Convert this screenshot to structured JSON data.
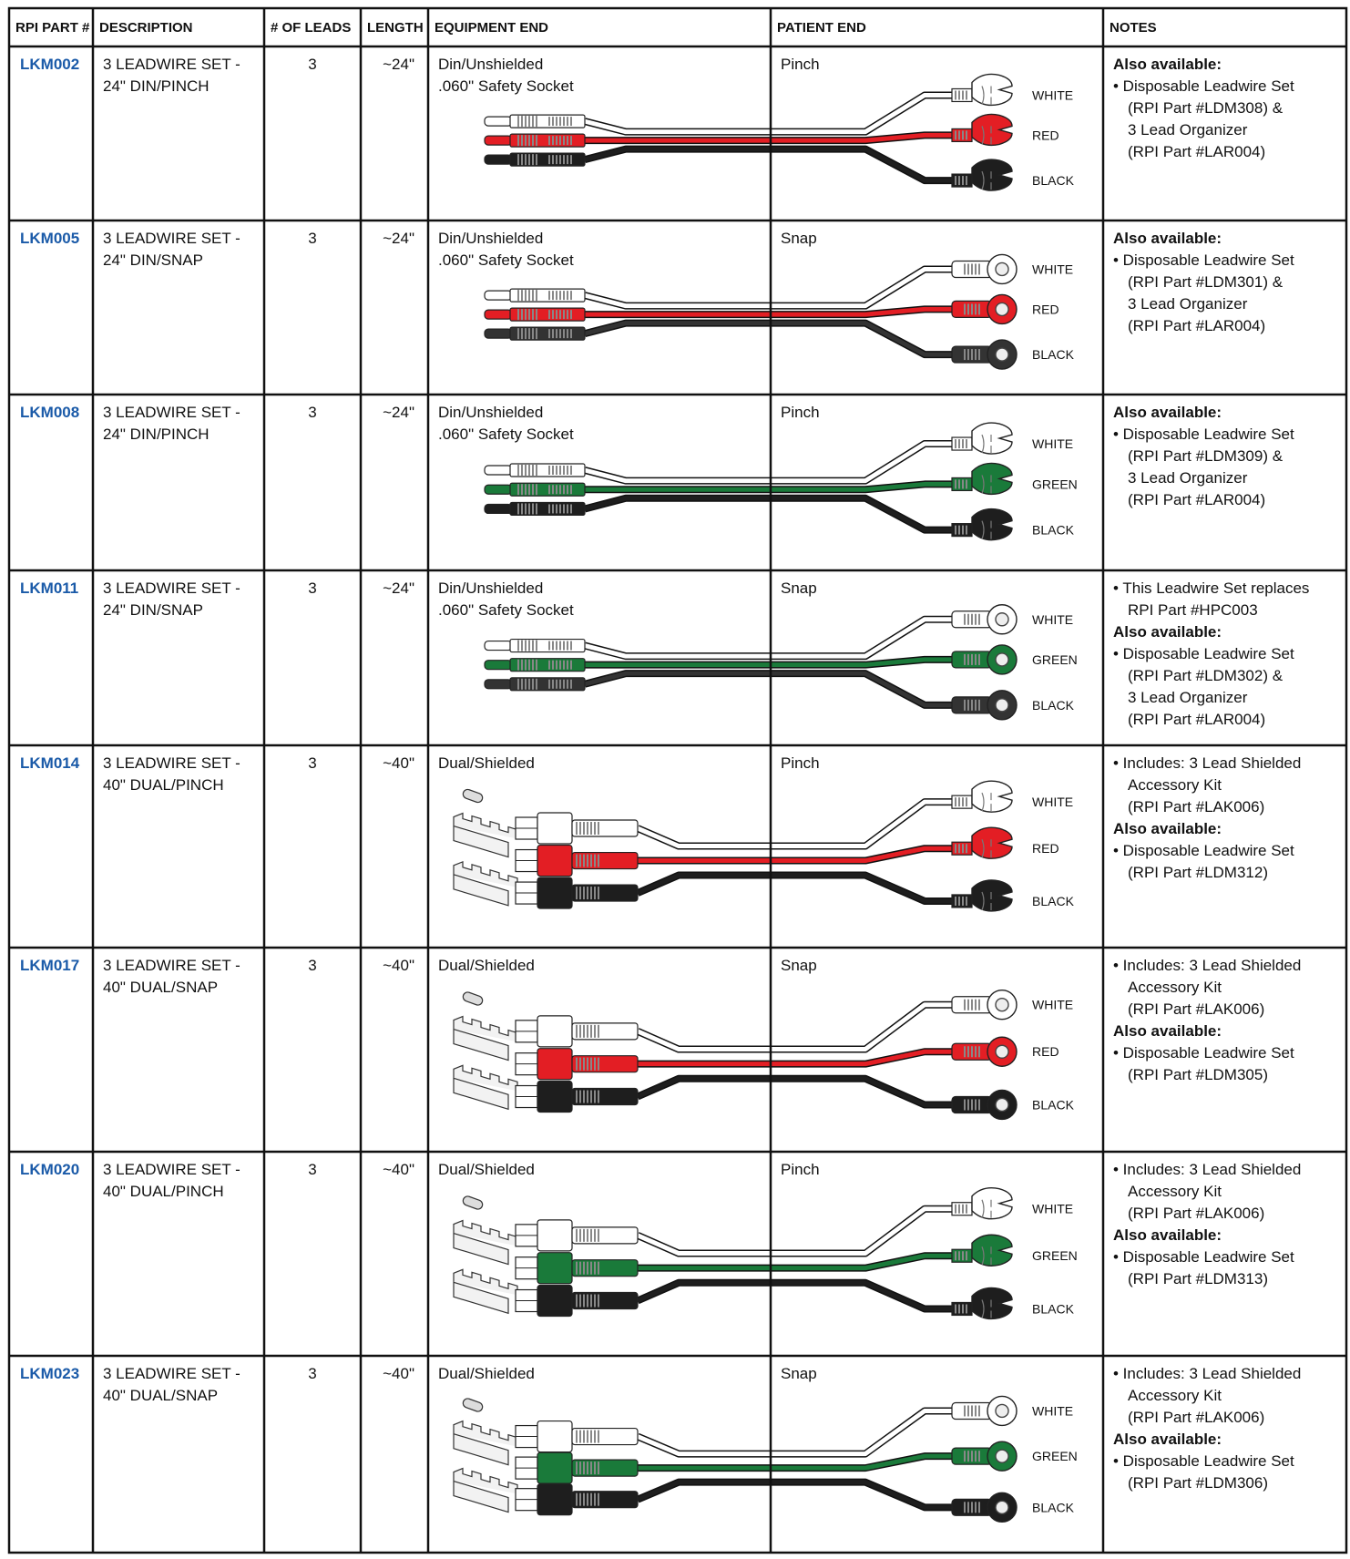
{
  "table": {
    "headers": [
      "RPI PART #",
      "DESCRIPTION",
      "# OF LEADS",
      "LENGTH",
      "EQUIPMENT END",
      "PATIENT END",
      "NOTES"
    ],
    "rows": [
      {
        "part": "LKM002",
        "description": [
          "3 LEADWIRE SET -",
          "24\" DIN/PINCH"
        ],
        "leads": 3,
        "length": "~24\"",
        "equipment_end": [
          "Din/Unshielded",
          ".060\" Safety Socket"
        ],
        "patient_end": "Pinch",
        "connector": {
          "equipment": "din",
          "patient": "pinch"
        },
        "wires": [
          {
            "label": "WHITE",
            "color": "#ffffff"
          },
          {
            "label": "RED",
            "color": "#e31e24"
          },
          {
            "label": "BLACK",
            "color": "#1e1e1e"
          }
        ],
        "notes": [
          {
            "bold": true,
            "lines": [
              "Also available:"
            ]
          },
          {
            "lines": [
              "• Disposable Leadwire Set",
              "(RPI Part #LDM308) &",
              "3 Lead Organizer",
              "(RPI Part #LAR004)"
            ]
          }
        ]
      },
      {
        "part": "LKM005",
        "description": [
          "3 LEADWIRE SET -",
          "24\" DIN/SNAP"
        ],
        "leads": 3,
        "length": "~24\"",
        "equipment_end": [
          "Din/Unshielded",
          ".060\" Safety Socket"
        ],
        "patient_end": "Snap",
        "connector": {
          "equipment": "din",
          "patient": "snap"
        },
        "wires": [
          {
            "label": "WHITE",
            "color": "#ffffff"
          },
          {
            "label": "RED",
            "color": "#e31e24"
          },
          {
            "label": "BLACK",
            "color": "#333333"
          }
        ],
        "notes": [
          {
            "bold": true,
            "lines": [
              "Also available:"
            ]
          },
          {
            "lines": [
              "• Disposable Leadwire Set",
              "(RPI Part #LDM301) &",
              "3 Lead Organizer",
              "(RPI Part #LAR004)"
            ]
          }
        ]
      },
      {
        "part": "LKM008",
        "description": [
          "3 LEADWIRE SET -",
          "24\" DIN/PINCH"
        ],
        "leads": 3,
        "length": "~24\"",
        "equipment_end": [
          "Din/Unshielded",
          ".060\" Safety Socket"
        ],
        "patient_end": "Pinch",
        "connector": {
          "equipment": "din",
          "patient": "pinch"
        },
        "wires": [
          {
            "label": "WHITE",
            "color": "#ffffff"
          },
          {
            "label": "GREEN",
            "color": "#1a7a3a"
          },
          {
            "label": "BLACK",
            "color": "#1e1e1e"
          }
        ],
        "notes": [
          {
            "bold": true,
            "lines": [
              "Also available:"
            ]
          },
          {
            "lines": [
              "• Disposable Leadwire Set",
              "(RPI Part #LDM309) &",
              "3 Lead Organizer",
              "(RPI Part #LAR004)"
            ]
          }
        ]
      },
      {
        "part": "LKM011",
        "description": [
          "3 LEADWIRE SET -",
          "24\" DIN/SNAP"
        ],
        "leads": 3,
        "length": "~24\"",
        "equipment_end": [
          "Din/Unshielded",
          ".060\" Safety Socket"
        ],
        "patient_end": "Snap",
        "connector": {
          "equipment": "din",
          "patient": "snap"
        },
        "wires": [
          {
            "label": "WHITE",
            "color": "#ffffff"
          },
          {
            "label": "GREEN",
            "color": "#1a7a3a"
          },
          {
            "label": "BLACK",
            "color": "#333333"
          }
        ],
        "notes": [
          {
            "lines": [
              "• This Leadwire Set replaces",
              "RPI Part #HPC003"
            ]
          },
          {
            "bold": true,
            "lines": [
              "Also available:"
            ]
          },
          {
            "lines": [
              "• Disposable Leadwire Set",
              "(RPI Part #LDM302) &",
              "3 Lead Organizer",
              "(RPI Part #LAR004)"
            ]
          }
        ]
      },
      {
        "part": "LKM014",
        "description": [
          "3 LEADWIRE SET -",
          "40\" DUAL/PINCH"
        ],
        "leads": 3,
        "length": "~40\"",
        "equipment_end": [
          "Dual/Shielded"
        ],
        "patient_end": "Pinch",
        "connector": {
          "equipment": "dual",
          "patient": "pinch"
        },
        "wires": [
          {
            "label": "WHITE",
            "color": "#ffffff"
          },
          {
            "label": "RED",
            "color": "#e31e24"
          },
          {
            "label": "BLACK",
            "color": "#1e1e1e"
          }
        ],
        "notes": [
          {
            "lines": [
              "• Includes: 3 Lead Shielded",
              "Accessory Kit",
              "(RPI Part #LAK006)"
            ]
          },
          {
            "bold": true,
            "lines": [
              "Also available:"
            ]
          },
          {
            "lines": [
              "• Disposable Leadwire Set",
              "(RPI Part #LDM312)"
            ]
          }
        ]
      },
      {
        "part": "LKM017",
        "description": [
          "3 LEADWIRE SET -",
          "40\" DUAL/SNAP"
        ],
        "leads": 3,
        "length": "~40\"",
        "equipment_end": [
          "Dual/Shielded"
        ],
        "patient_end": "Snap",
        "connector": {
          "equipment": "dual",
          "patient": "snap"
        },
        "wires": [
          {
            "label": "WHITE",
            "color": "#ffffff"
          },
          {
            "label": "RED",
            "color": "#e31e24"
          },
          {
            "label": "BLACK",
            "color": "#1e1e1e"
          }
        ],
        "notes": [
          {
            "lines": [
              "• Includes: 3 Lead Shielded",
              "Accessory Kit",
              "(RPI Part #LAK006)"
            ]
          },
          {
            "bold": true,
            "lines": [
              "Also available:"
            ]
          },
          {
            "lines": [
              "• Disposable Leadwire Set",
              "(RPI Part #LDM305)"
            ]
          }
        ]
      },
      {
        "part": "LKM020",
        "description": [
          "3 LEADWIRE SET -",
          "40\" DUAL/PINCH"
        ],
        "leads": 3,
        "length": "~40\"",
        "equipment_end": [
          "Dual/Shielded"
        ],
        "patient_end": "Pinch",
        "connector": {
          "equipment": "dual",
          "patient": "pinch"
        },
        "wires": [
          {
            "label": "WHITE",
            "color": "#ffffff"
          },
          {
            "label": "GREEN",
            "color": "#1a7a3a"
          },
          {
            "label": "BLACK",
            "color": "#1e1e1e"
          }
        ],
        "notes": [
          {
            "lines": [
              "• Includes: 3 Lead Shielded",
              "Accessory Kit",
              "(RPI Part #LAK006)"
            ]
          },
          {
            "bold": true,
            "lines": [
              "Also available:"
            ]
          },
          {
            "lines": [
              "• Disposable Leadwire Set",
              "(RPI Part #LDM313)"
            ]
          }
        ]
      },
      {
        "part": "LKM023",
        "description": [
          "3 LEADWIRE SET -",
          "40\" DUAL/SNAP"
        ],
        "leads": 3,
        "length": "~40\"",
        "equipment_end": [
          "Dual/Shielded"
        ],
        "patient_end": "Snap",
        "connector": {
          "equipment": "dual",
          "patient": "snap"
        },
        "wires": [
          {
            "label": "WHITE",
            "color": "#ffffff"
          },
          {
            "label": "GREEN",
            "color": "#1a7a3a"
          },
          {
            "label": "BLACK",
            "color": "#1e1e1e"
          }
        ],
        "notes": [
          {
            "lines": [
              "• Includes: 3 Lead Shielded",
              "Accessory Kit",
              "(RPI Part #LAK006)"
            ]
          },
          {
            "bold": true,
            "lines": [
              "Also available:"
            ]
          },
          {
            "lines": [
              "• Disposable Leadwire Set",
              "(RPI Part #LDM306)"
            ]
          }
        ]
      }
    ]
  }
}
